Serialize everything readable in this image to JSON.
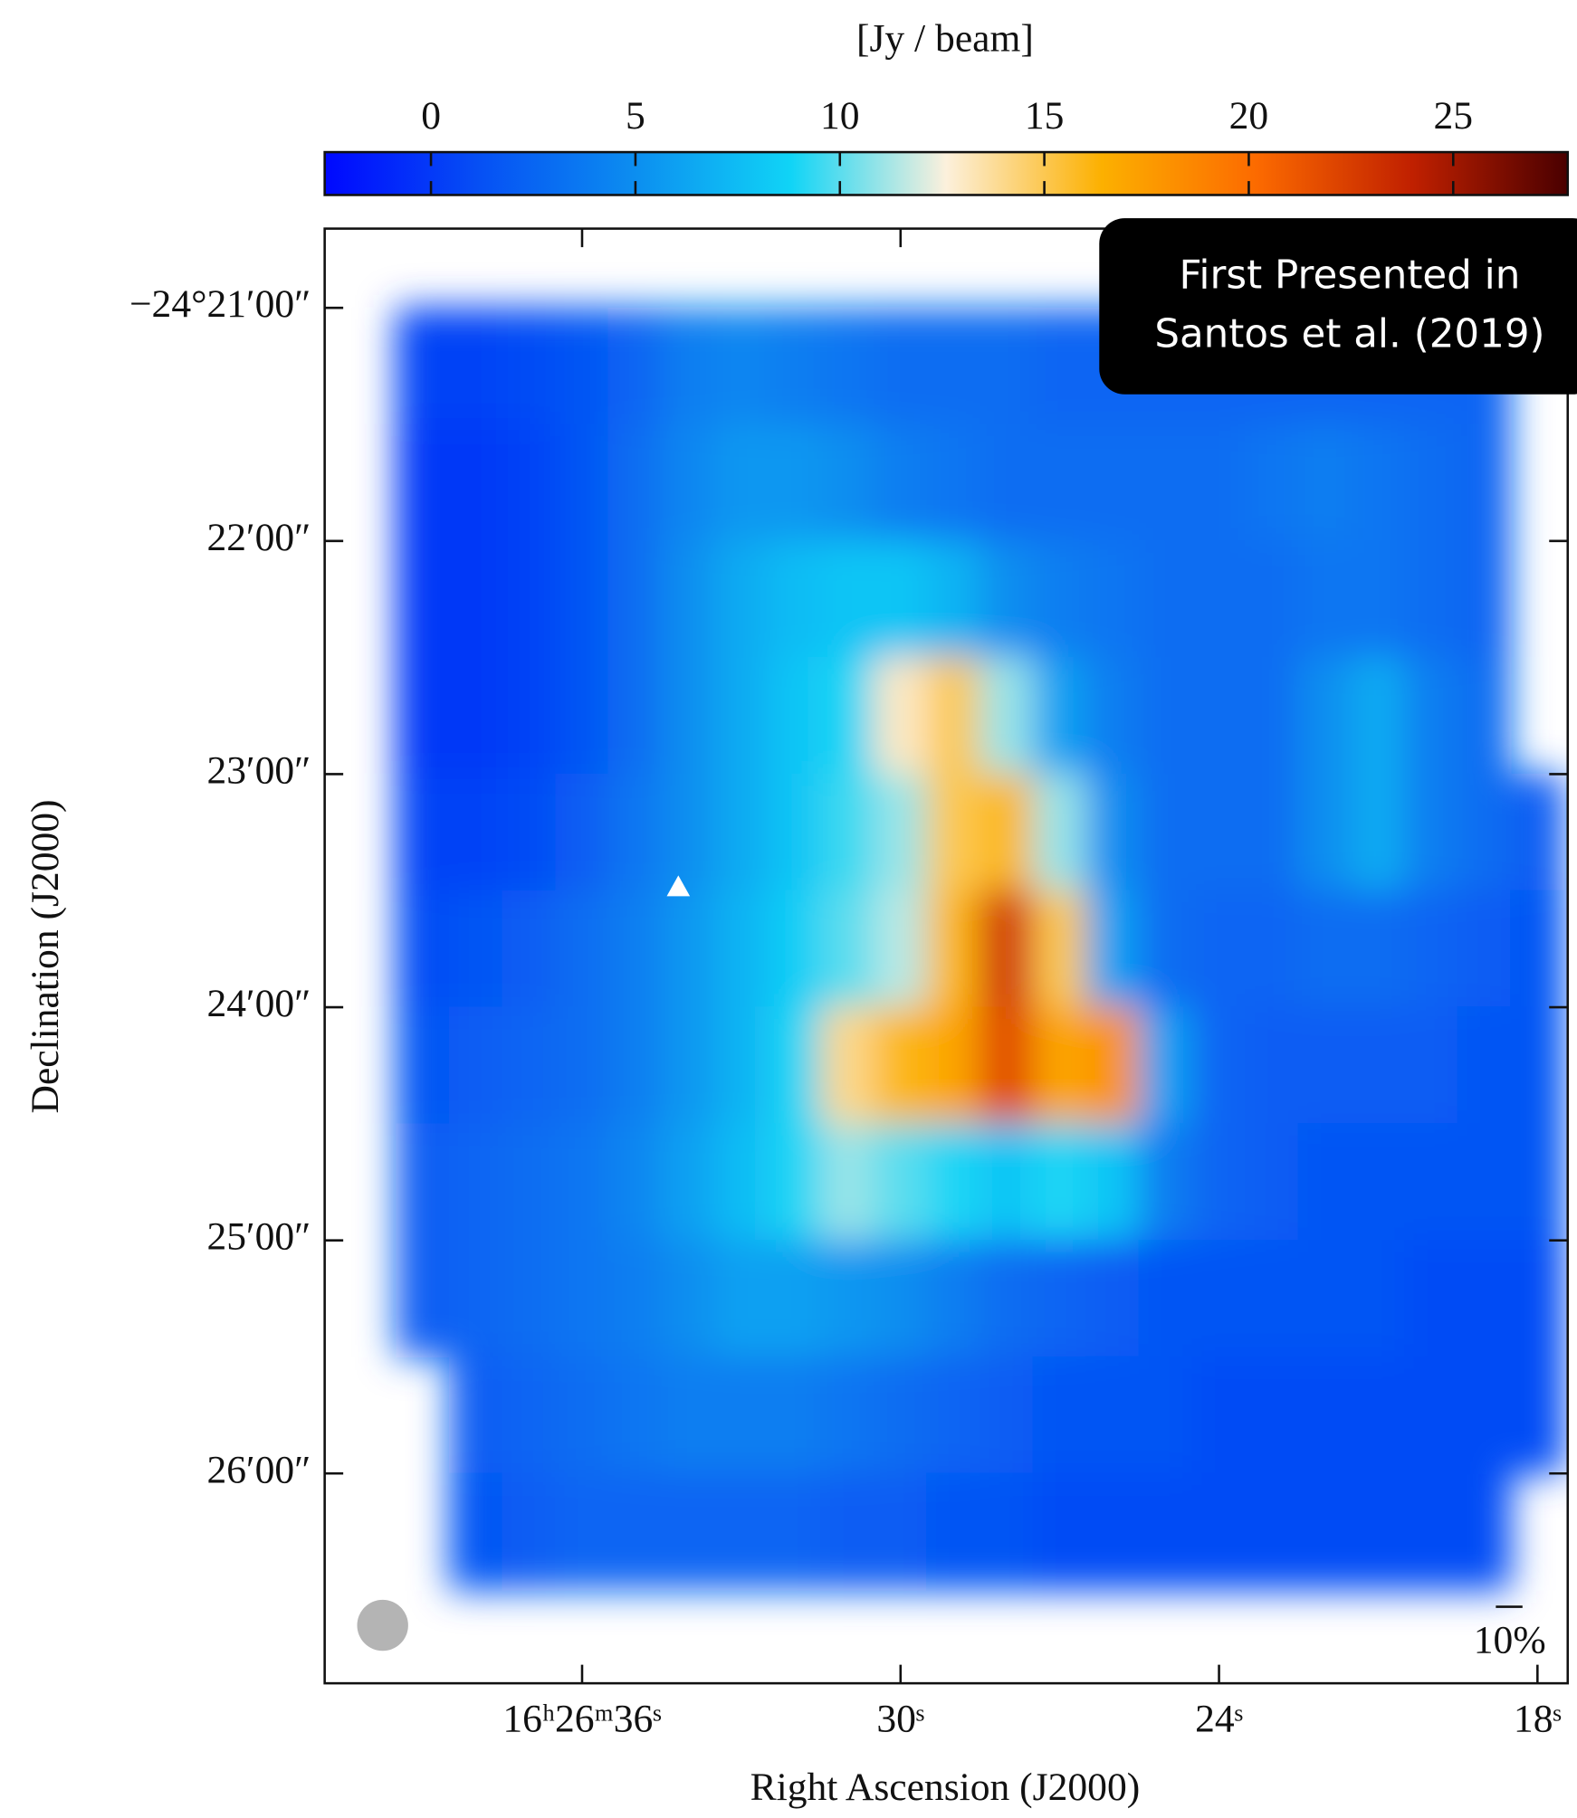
{
  "chart_data": {
    "type": "heatmap",
    "colorbar_label": "[Jy / beam]",
    "clim": [
      -2.6,
      27.8
    ],
    "cbarticks": [
      0,
      5,
      10,
      15,
      20,
      25
    ],
    "colormap": [
      "#0008ff",
      "#0650f4",
      "#0c8ef0",
      "#10d4f6",
      "#fcf0dc",
      "#fcb000",
      "#fc6a00",
      "#c02000",
      "#4a0000"
    ],
    "xlabel": "Right Ascension (J2000)",
    "ylabel": "Declination (J2000)",
    "xlim": [
      40.85,
      17.43
    ],
    "ylim": [
      26.9,
      20.66
    ],
    "xticks": [
      {
        "value": 36,
        "label": "16ʰ26ᵐ36ˢ"
      },
      {
        "value": 30,
        "label": "30ˢ"
      },
      {
        "value": 24,
        "label": "24ˢ"
      },
      {
        "value": 18,
        "label": "18ˢ"
      }
    ],
    "yticks": [
      {
        "value": 21,
        "label": "−24°21′00″"
      },
      {
        "value": 22,
        "label": "22′00″"
      },
      {
        "value": 23,
        "label": "23′00″"
      },
      {
        "value": 24,
        "label": "24′00″"
      },
      {
        "value": 25,
        "label": "25′00″"
      },
      {
        "value": 26,
        "label": "26′00″"
      }
    ],
    "x": [
      39,
      38,
      37,
      36,
      35,
      34,
      33,
      32,
      31,
      30,
      29,
      28,
      27,
      26,
      25,
      24,
      23,
      22,
      21,
      20,
      19,
      18
    ],
    "y": [
      21.25,
      21.75,
      22.25,
      22.75,
      23.25,
      23.75,
      24.25,
      24.75,
      25.25,
      25.75,
      26.25
    ],
    "values": [
      [
        0.5,
        0.5,
        1,
        1.5,
        2.5,
        4,
        4.5,
        4,
        3.5,
        3,
        3,
        3,
        2.5,
        2.5,
        2.5,
        2.5,
        2.5,
        2.5,
        2.5,
        2.5,
        2.5,
        null
      ],
      [
        0,
        0,
        0.5,
        1.5,
        3,
        4.5,
        5.5,
        5.5,
        5,
        4,
        3.5,
        3,
        3,
        3,
        3,
        3,
        3.5,
        4,
        3.5,
        3,
        2.5,
        null
      ],
      [
        0,
        0,
        0.5,
        1.5,
        3,
        5,
        6.5,
        7.5,
        8,
        8,
        7,
        5,
        4,
        3.5,
        3,
        3,
        3,
        3.5,
        3.5,
        3,
        2.5,
        null
      ],
      [
        0,
        0,
        0.5,
        1.5,
        3,
        5,
        6.5,
        8,
        9,
        13,
        15,
        11,
        6,
        4,
        3,
        3,
        3,
        5,
        6.5,
        4,
        3,
        null
      ],
      [
        0.5,
        0.5,
        1,
        2,
        3.5,
        5,
        6.5,
        8,
        9.5,
        11,
        15,
        16,
        11,
        5,
        3,
        3,
        3,
        5,
        6.5,
        4,
        3,
        2
      ],
      [
        1,
        1.5,
        2,
        3,
        4,
        5.5,
        7,
        8.5,
        10,
        11.5,
        16,
        23,
        15,
        6,
        3,
        2.5,
        2.5,
        3,
        3,
        2.5,
        2,
        1.5
      ],
      [
        1.5,
        2,
        2.5,
        3,
        4,
        5.5,
        7,
        9,
        14,
        16,
        17,
        22,
        17,
        18,
        6,
        2.5,
        2,
        2,
        2,
        2,
        1.5,
        1.5
      ],
      [
        2,
        2.5,
        3,
        3.5,
        4.5,
        6,
        7.5,
        9,
        11,
        10,
        9,
        8,
        9,
        8,
        4,
        2.5,
        2,
        1.5,
        1.5,
        1.5,
        1.5,
        1.5
      ],
      [
        2,
        2.5,
        3,
        3.5,
        4,
        5,
        6,
        6,
        5.5,
        5,
        4,
        3,
        2.5,
        2,
        1.5,
        1.5,
        1.5,
        1.5,
        1.5,
        1,
        1,
        1
      ],
      [
        null,
        2,
        2.5,
        3,
        3.5,
        4,
        4,
        4,
        3.5,
        3,
        2.5,
        2,
        1.5,
        1.5,
        1.5,
        1,
        1,
        1,
        1,
        1,
        1,
        1
      ],
      [
        null,
        1.5,
        2,
        2.5,
        2.5,
        2.5,
        2.5,
        2.5,
        2,
        2,
        1.5,
        1.5,
        1,
        1,
        1,
        1,
        1,
        1,
        1,
        1,
        1,
        null
      ]
    ],
    "annotation": [
      "First Presented in",
      "Santos et al. (2019)"
    ],
    "scalebar_label": "10%"
  }
}
